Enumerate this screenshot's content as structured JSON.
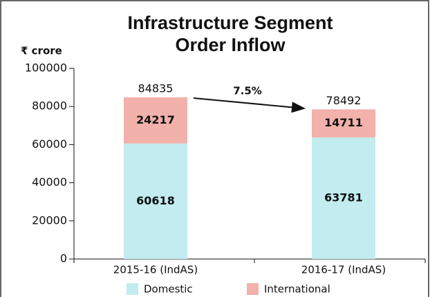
{
  "chart_data": {
    "type": "stacked_bar",
    "title": [
      "Infrastructure Segment",
      "Order Inflow"
    ],
    "unit_label": "₹ crore",
    "categories": [
      "2015-16 (IndAS)",
      "2016-17 (IndAS)"
    ],
    "series": [
      {
        "name": "Domestic",
        "color": "#c2ecf0",
        "values": [
          60618,
          63781
        ]
      },
      {
        "name": "International",
        "color": "#f2b1ab",
        "values": [
          24217,
          14711
        ]
      }
    ],
    "total_labels": [
      84835,
      78492
    ],
    "growth_label": "7.5%",
    "ylim": [
      0,
      100000
    ],
    "yticks": [
      0,
      20000,
      40000,
      60000,
      80000,
      100000
    ]
  }
}
